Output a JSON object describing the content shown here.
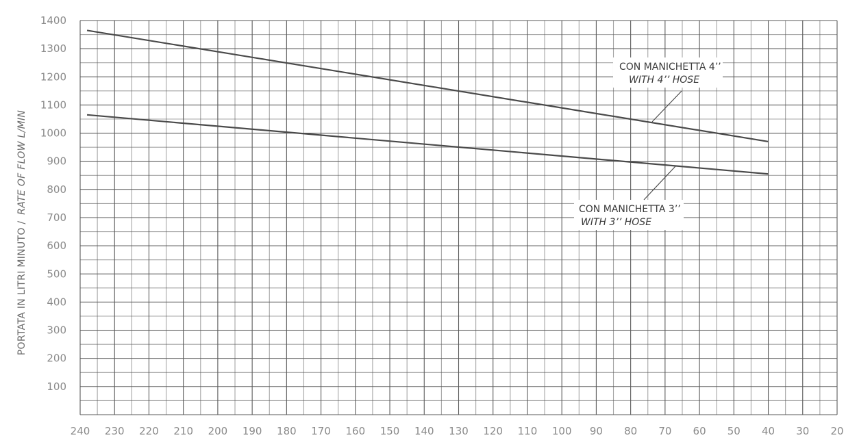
{
  "chart_data": {
    "type": "line",
    "ylabel_main": "PORTATA IN LITRI MINUTO /",
    "ylabel_italic": "RATE OF FLOW L/MIN",
    "xlabel": "",
    "title": "",
    "x_ticks": [
      "240",
      "230",
      "220",
      "210",
      "200",
      "190",
      "180",
      "170",
      "160",
      "150",
      "140",
      "130",
      "120",
      "110",
      "100",
      "90",
      "80",
      "70",
      "60",
      "50",
      "40",
      "30",
      "20"
    ],
    "y_ticks": [
      "100",
      "200",
      "300",
      "400",
      "500",
      "600",
      "700",
      "800",
      "900",
      "1000",
      "1100",
      "1200",
      "1300",
      "1400"
    ],
    "xlim": [
      240,
      20
    ],
    "ylim": [
      0,
      1400
    ],
    "grid": true,
    "series": [
      {
        "label_line1": "CON MANICHETTA 4’’",
        "label_line2": "WITH 4’’ HOSE",
        "x": [
          238,
          40
        ],
        "y": [
          1365,
          970
        ]
      },
      {
        "label_line1": "CON MANICHETTA 3’’",
        "label_line2": "WITH 3’’ HOSE",
        "x": [
          238,
          40
        ],
        "y": [
          1065,
          855
        ]
      }
    ]
  }
}
